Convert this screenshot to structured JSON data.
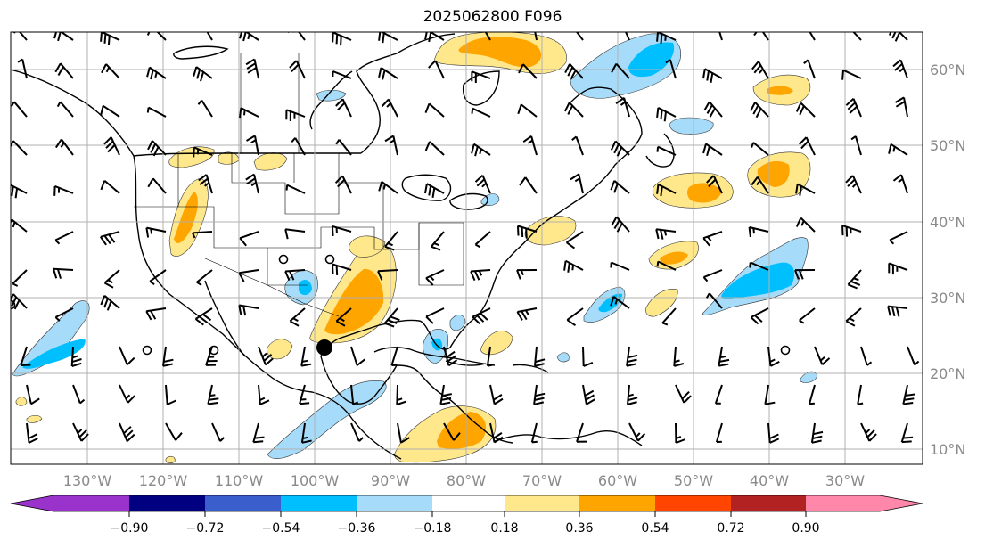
{
  "title": "2025062800 F096",
  "map": {
    "lon_labels": [
      "130°W",
      "120°W",
      "110°W",
      "100°W",
      "90°W",
      "80°W",
      "70°W",
      "60°W",
      "50°W",
      "40°W",
      "30°W"
    ],
    "lat_labels": [
      "60°N",
      "50°N",
      "40°N",
      "30°N",
      "20°N",
      "10°N"
    ],
    "storm_marker": "black-filled-circle",
    "calm_markers": "open-circles",
    "fields": "wind-barbs-over-shaded-anomaly"
  },
  "colorbar": {
    "tick_labels": [
      "−0.90",
      "−0.72",
      "−0.54",
      "−0.36",
      "−0.18",
      "0.18",
      "0.36",
      "0.54",
      "0.72",
      "0.90"
    ],
    "colors": [
      "#9933cc",
      "#000080",
      "#3a5fcd",
      "#00bfff",
      "#a6dcfa",
      "#ffffff",
      "#ffe88c",
      "#ffa500",
      "#ff4500",
      "#b22222",
      "#ff88aa"
    ]
  },
  "palette": {
    "light_blue": "#a6dcfa",
    "blue": "#00bfff",
    "light_yellow": "#ffe88c",
    "orange": "#ffa500",
    "gridline": "#b0b0b0"
  }
}
